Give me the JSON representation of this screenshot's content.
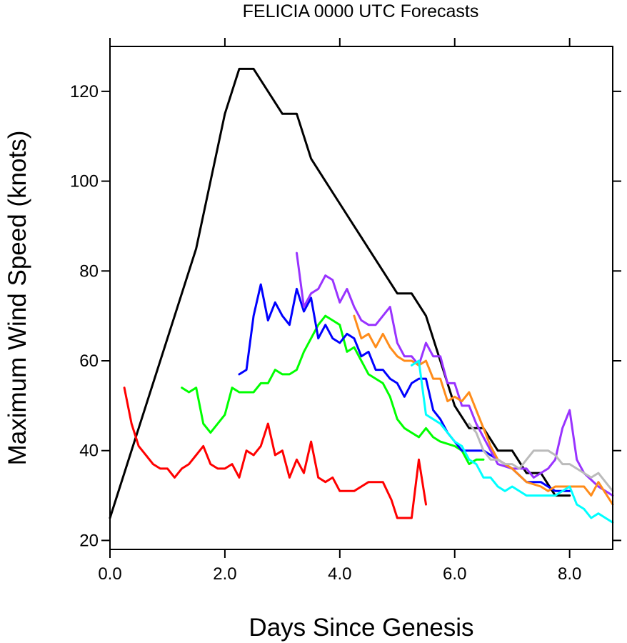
{
  "chart_data": {
    "type": "line",
    "title": "FELICIA 0000 UTC Forecasts",
    "xlabel": "Days Since Genesis",
    "ylabel": "Maximum Wind Speed (knots)",
    "xlim": [
      0.0,
      8.75
    ],
    "ylim": [
      18,
      130
    ],
    "x_ticks": [
      0.0,
      2.0,
      4.0,
      6.0,
      8.0
    ],
    "x_tick_labels": [
      "0.0",
      "2.0",
      "4.0",
      "6.0",
      "8.0"
    ],
    "y_ticks": [
      20,
      40,
      60,
      80,
      100,
      120
    ],
    "y_tick_labels": [
      "20",
      "40",
      "60",
      "80",
      "100",
      "120"
    ],
    "grid": false,
    "series": [
      {
        "color": "#000000",
        "x": [
          0.0,
          0.5,
          1.0,
          1.5,
          2.0,
          2.25,
          2.5,
          2.75,
          3.0,
          3.25,
          3.5,
          3.75,
          4.0,
          4.25,
          4.5,
          4.75,
          5.0,
          5.25,
          5.5,
          5.75,
          6.0,
          6.25,
          6.5,
          6.75,
          7.0,
          7.25,
          7.5,
          7.75,
          8.0
        ],
        "y": [
          25,
          45,
          65,
          85,
          115,
          125,
          125,
          120,
          115,
          115,
          105,
          100,
          95,
          90,
          85,
          80,
          75,
          75,
          70,
          60,
          50,
          45,
          45,
          40,
          40,
          35,
          35,
          30,
          30
        ]
      },
      {
        "color": "#ff0000",
        "x": [
          0.25,
          0.375,
          0.5,
          0.625,
          0.75,
          0.875,
          1.0,
          1.125,
          1.25,
          1.375,
          1.5,
          1.625,
          1.75,
          1.875,
          2.0,
          2.125,
          2.25,
          2.375,
          2.5,
          2.625,
          2.75,
          2.875,
          3.0,
          3.125,
          3.25,
          3.375,
          3.5,
          3.625,
          3.75,
          3.875,
          4.0,
          4.25,
          4.5,
          4.75,
          4.9,
          5.0,
          5.25,
          5.375,
          5.5
        ],
        "y": [
          54,
          46,
          41,
          39,
          37,
          36,
          36,
          34,
          36,
          37,
          39,
          41,
          37,
          36,
          36,
          37,
          34,
          40,
          39,
          41,
          46,
          39,
          40,
          34,
          38,
          35,
          42,
          34,
          33,
          34,
          31,
          31,
          33,
          33,
          29,
          25,
          25,
          38,
          28
        ]
      },
      {
        "color": "#00ff00",
        "x": [
          1.25,
          1.375,
          1.5,
          1.625,
          1.75,
          2.0,
          2.125,
          2.25,
          2.375,
          2.5,
          2.625,
          2.75,
          2.875,
          3.0,
          3.125,
          3.25,
          3.375,
          3.5,
          3.625,
          3.75,
          3.875,
          4.0,
          4.125,
          4.25,
          4.375,
          4.5,
          4.75,
          4.875,
          5.0,
          5.125,
          5.25,
          5.375,
          5.5,
          5.625,
          5.75,
          6.0,
          6.125,
          6.25,
          6.375,
          6.5
        ],
        "y": [
          54,
          53,
          54,
          46,
          44,
          48,
          54,
          53,
          53,
          53,
          55,
          55,
          58,
          57,
          57,
          58,
          62,
          65,
          68,
          70,
          69,
          68,
          62,
          63,
          60,
          57,
          55,
          52,
          47,
          45,
          44,
          43,
          45,
          43,
          42,
          41,
          40,
          37,
          38,
          38
        ]
      },
      {
        "color": "#0000ff",
        "x": [
          2.25,
          2.375,
          2.5,
          2.625,
          2.75,
          2.875,
          3.0,
          3.125,
          3.25,
          3.375,
          3.5,
          3.625,
          3.75,
          3.875,
          4.0,
          4.125,
          4.25,
          4.375,
          4.5,
          4.625,
          4.75,
          4.875,
          5.0,
          5.125,
          5.25,
          5.375,
          5.5,
          5.625,
          5.75,
          5.875,
          6.0,
          6.125,
          6.25,
          6.5,
          6.75,
          7.0,
          7.25,
          7.5,
          7.75,
          8.0
        ],
        "y": [
          57,
          58,
          70,
          77,
          69,
          73,
          70,
          68,
          76,
          71,
          74,
          65,
          68,
          65,
          64,
          66,
          65,
          61,
          62,
          58,
          58,
          56,
          55,
          52,
          55,
          56,
          56,
          49,
          47,
          44,
          42,
          40,
          40,
          40,
          38,
          36,
          33,
          33,
          31,
          31
        ]
      },
      {
        "color": "#9933ff",
        "x": [
          3.25,
          3.375,
          3.5,
          3.625,
          3.75,
          3.875,
          4.0,
          4.125,
          4.25,
          4.375,
          4.5,
          4.625,
          4.75,
          4.875,
          5.0,
          5.125,
          5.25,
          5.375,
          5.5,
          5.625,
          5.75,
          5.875,
          6.0,
          6.125,
          6.25,
          6.375,
          6.5,
          6.75,
          7.0,
          7.25,
          7.375,
          7.5,
          7.625,
          7.75,
          7.875,
          8.0,
          8.125,
          8.25,
          8.5,
          8.75
        ],
        "y": [
          84,
          72,
          75,
          76,
          79,
          78,
          73,
          76,
          72,
          69,
          68,
          68,
          70,
          72,
          64,
          61,
          61,
          59,
          64,
          61,
          61,
          55,
          55,
          50,
          50,
          46,
          43,
          37,
          36,
          36,
          34,
          35,
          36,
          38,
          45,
          49,
          38,
          35,
          32,
          30
        ]
      },
      {
        "color": "#ff8c1a",
        "x": [
          4.25,
          4.375,
          4.5,
          4.625,
          4.75,
          4.875,
          5.0,
          5.125,
          5.25,
          5.375,
          5.5,
          5.625,
          5.75,
          5.875,
          6.0,
          6.125,
          6.25,
          6.375,
          6.5,
          6.625,
          6.75,
          7.0,
          7.25,
          7.5,
          7.625,
          7.75,
          8.0,
          8.25,
          8.375,
          8.5,
          8.75
        ],
        "y": [
          70,
          65,
          66,
          63,
          66,
          63,
          61,
          60,
          60,
          59,
          60,
          56,
          56,
          51,
          52,
          51,
          53,
          49,
          45,
          41,
          38,
          36,
          33,
          32,
          31,
          32,
          32,
          32,
          30,
          33,
          28
        ]
      },
      {
        "color": "#00ffff",
        "x": [
          5.25,
          5.375,
          5.5,
          5.625,
          5.75,
          5.875,
          6.0,
          6.125,
          6.25,
          6.375,
          6.5,
          6.625,
          6.75,
          6.875,
          7.0,
          7.25,
          7.5,
          7.625,
          7.75,
          8.0,
          8.125,
          8.25,
          8.375,
          8.5,
          8.625,
          8.75
        ],
        "y": [
          59,
          60,
          48,
          47,
          46,
          44,
          42,
          41,
          38,
          37,
          34,
          34,
          32,
          31,
          32,
          30,
          30,
          30,
          30,
          32,
          28,
          27,
          25,
          26,
          25,
          24
        ]
      },
      {
        "color": "#bbbbbb",
        "x": [
          6.25,
          6.375,
          6.5,
          6.625,
          6.75,
          6.875,
          7.0,
          7.125,
          7.25,
          7.375,
          7.5,
          7.625,
          7.75,
          7.875,
          8.0,
          8.125,
          8.25,
          8.375,
          8.5,
          8.625,
          8.75
        ],
        "y": [
          46,
          44,
          40,
          38,
          38,
          37,
          37,
          36,
          38,
          40,
          40,
          40,
          39,
          37,
          37,
          36,
          35,
          34,
          35,
          33,
          31
        ]
      }
    ]
  }
}
